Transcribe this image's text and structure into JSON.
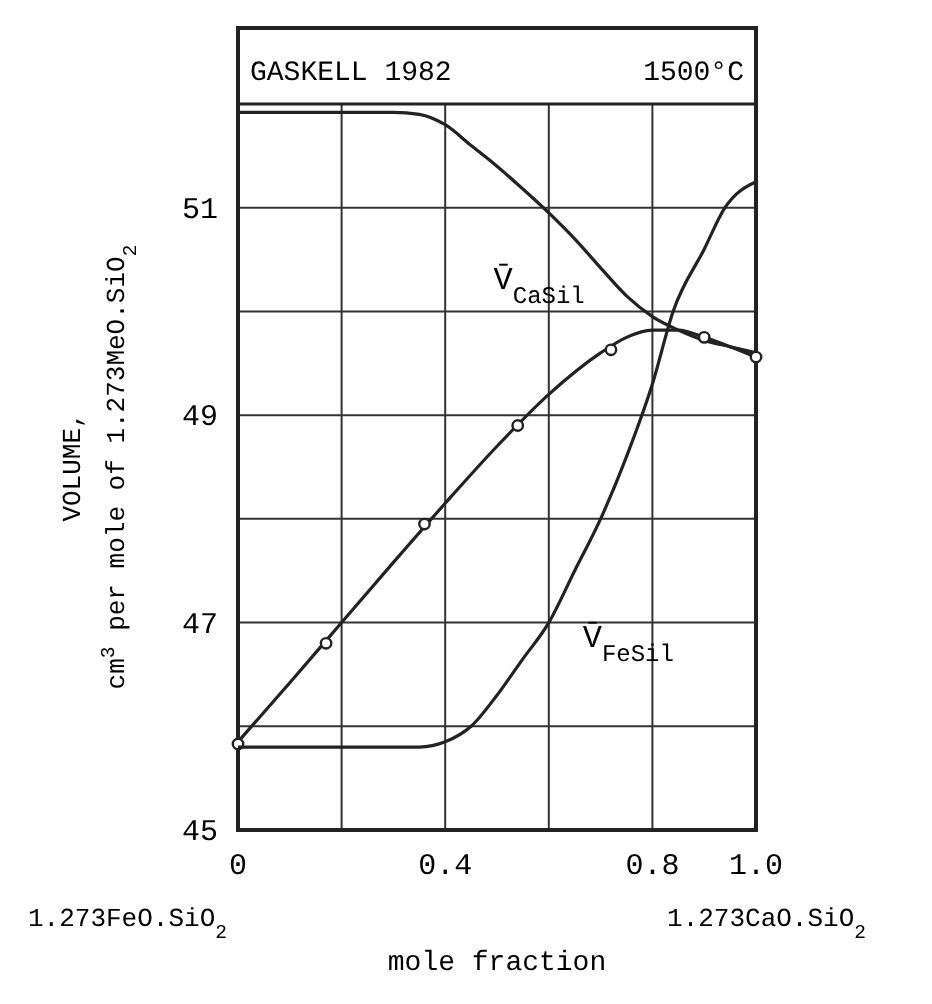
{
  "chart_data": {
    "type": "line",
    "title": "GASKELL 1982",
    "subtitle": "1500°C",
    "xlabel": "mole fraction",
    "ylabel": "VOLUME,\ncm$^{3}$ per mole of 1.273MeO.SiO$_{2}$",
    "xlim": [
      0,
      1
    ],
    "ylim": [
      45,
      52
    ],
    "xticks": [
      0,
      {
        "value": 0.2,
        "label": null
      },
      0.4,
      {
        "value": 0.6,
        "label": null
      },
      0.8,
      {
        "value": 1,
        "label": "1.0"
      }
    ],
    "yticks": [
      45,
      {
        "value": 46,
        "label": null
      },
      47,
      {
        "value": 48,
        "label": null
      },
      49,
      {
        "value": 50,
        "label": null
      },
      51
    ],
    "grid": true,
    "series": [
      {
        "name": "V̄$_{CaSil}$",
        "color": "#222222",
        "marker": "none",
        "x": [
          0,
          0.2,
          0.3,
          0.35,
          0.4,
          0.45,
          0.5,
          0.55,
          0.6,
          0.65,
          0.7,
          0.75,
          0.8,
          0.85,
          0.9,
          0.95,
          1.0
        ],
        "values": [
          51.92,
          51.92,
          51.92,
          51.9,
          51.8,
          51.6,
          51.4,
          51.18,
          50.95,
          50.7,
          50.42,
          50.15,
          49.95,
          49.82,
          49.72,
          49.66,
          49.6
        ]
      },
      {
        "color": "#222222",
        "marker": "none",
        "x": [
          0,
          0.1,
          0.2,
          0.3,
          0.4,
          0.5,
          0.6,
          0.7,
          0.75,
          0.8,
          0.85,
          0.9,
          0.95,
          1.0
        ],
        "values": [
          45.85,
          46.42,
          47.0,
          47.58,
          48.15,
          48.7,
          49.2,
          49.6,
          49.75,
          49.82,
          49.82,
          49.75,
          49.66,
          49.56
        ]
      },
      {
        "type": "scatter",
        "color": "#222222",
        "marker": "circle",
        "x": [
          0,
          0.17,
          0.36,
          0.54,
          0.72,
          0.9,
          1.0
        ],
        "values": [
          45.83,
          46.8,
          47.95,
          48.9,
          49.63,
          49.75,
          49.56
        ]
      },
      {
        "name": "V̄$_{FeSil}$",
        "color": "#222222",
        "marker": "none",
        "x": [
          0,
          0.2,
          0.35,
          0.4,
          0.45,
          0.5,
          0.55,
          0.6,
          0.65,
          0.7,
          0.75,
          0.8,
          0.84,
          0.9,
          0.94,
          1.0
        ],
        "values": [
          45.8,
          45.8,
          45.8,
          45.85,
          46.0,
          46.3,
          46.65,
          47.0,
          47.5,
          48.0,
          48.6,
          49.3,
          50.0,
          50.6,
          51.0,
          51.25
        ]
      }
    ],
    "annotations": [
      "1.273FeO.SiO$_{2}$",
      "1.273CaO.SiO$_{2}$"
    ]
  }
}
